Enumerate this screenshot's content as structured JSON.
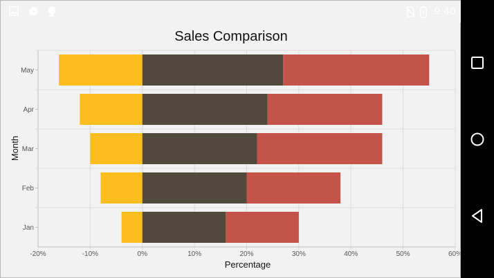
{
  "status_bar": {
    "time": "9:40",
    "icons": [
      "image-icon",
      "chat-bubble-icon",
      "android-icon",
      "no-sim-icon",
      "battery-icon"
    ]
  },
  "navigation": {
    "buttons": [
      "recents-square-icon",
      "home-circle-icon",
      "back-triangle-icon"
    ]
  },
  "colors": {
    "series_negative": "#fdbd1f",
    "series_middle": "#514a3c",
    "series_positive": "#c4544a",
    "grid": "#dcdcdc",
    "background": "#f2f2f2"
  },
  "chart_data": {
    "type": "bar",
    "orientation": "horizontal",
    "stacked": true,
    "title": "Sales Comparison",
    "xlabel": "Percentage",
    "ylabel": "Month",
    "categories": [
      "Jan",
      "Feb",
      "Mar",
      "Apr",
      "May"
    ],
    "series": [
      {
        "values": [
          -4,
          -8,
          -10,
          -12,
          -16
        ]
      },
      {
        "values": [
          16,
          20,
          22,
          24,
          27
        ]
      },
      {
        "values": [
          14,
          18,
          24,
          22,
          28
        ]
      }
    ],
    "xlim": [
      -20,
      60
    ],
    "xticks": [
      "-20%",
      "-10%",
      "0%",
      "10%",
      "20%",
      "30%",
      "40%",
      "50%",
      "60%"
    ],
    "grid": true,
    "legend": false
  }
}
